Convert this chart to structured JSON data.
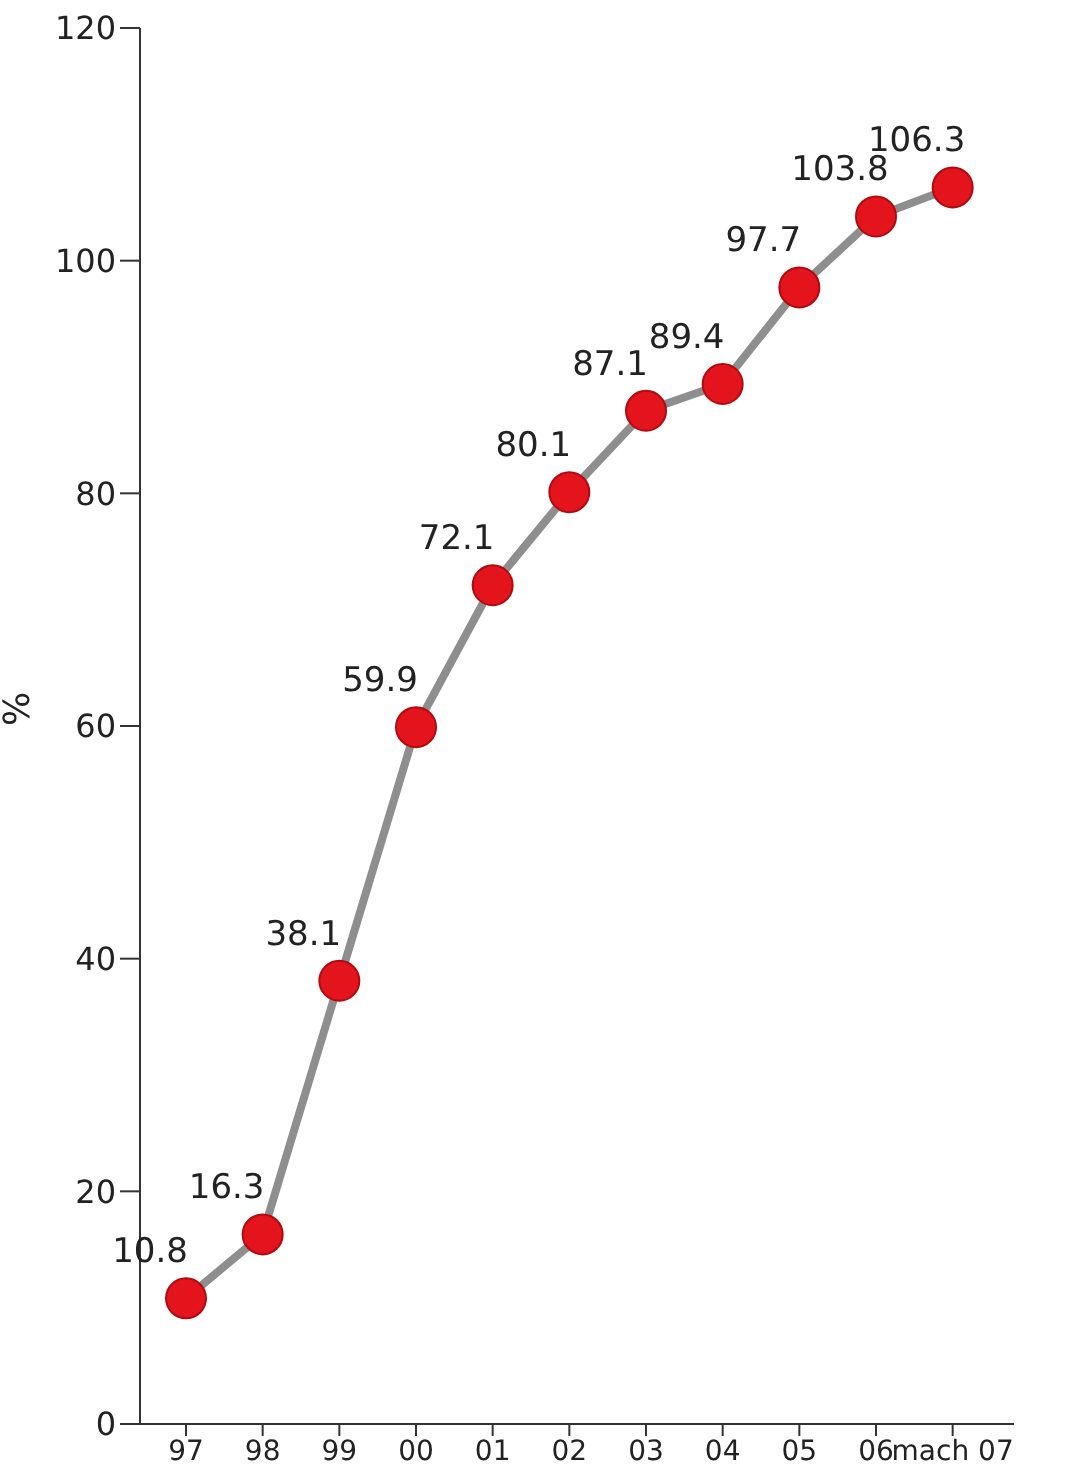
{
  "chart_data": {
    "type": "line",
    "ylabel": "%",
    "categories": [
      "97",
      "98",
      "99",
      "00",
      "01",
      "02",
      "03",
      "04",
      "05",
      "06",
      "mach 07"
    ],
    "series": [
      {
        "color": "#e3141b",
        "values": [
          10.8,
          16.3,
          38.1,
          59.9,
          72.1,
          80.1,
          87.1,
          89.4,
          97.7,
          103.8,
          106.3
        ]
      }
    ],
    "ylim": [
      0,
      120
    ],
    "yticks": [
      0,
      20,
      40,
      60,
      80,
      100,
      120
    ],
    "grid": false,
    "marker": "circle",
    "line_style": "solid",
    "data_labels": true
  }
}
